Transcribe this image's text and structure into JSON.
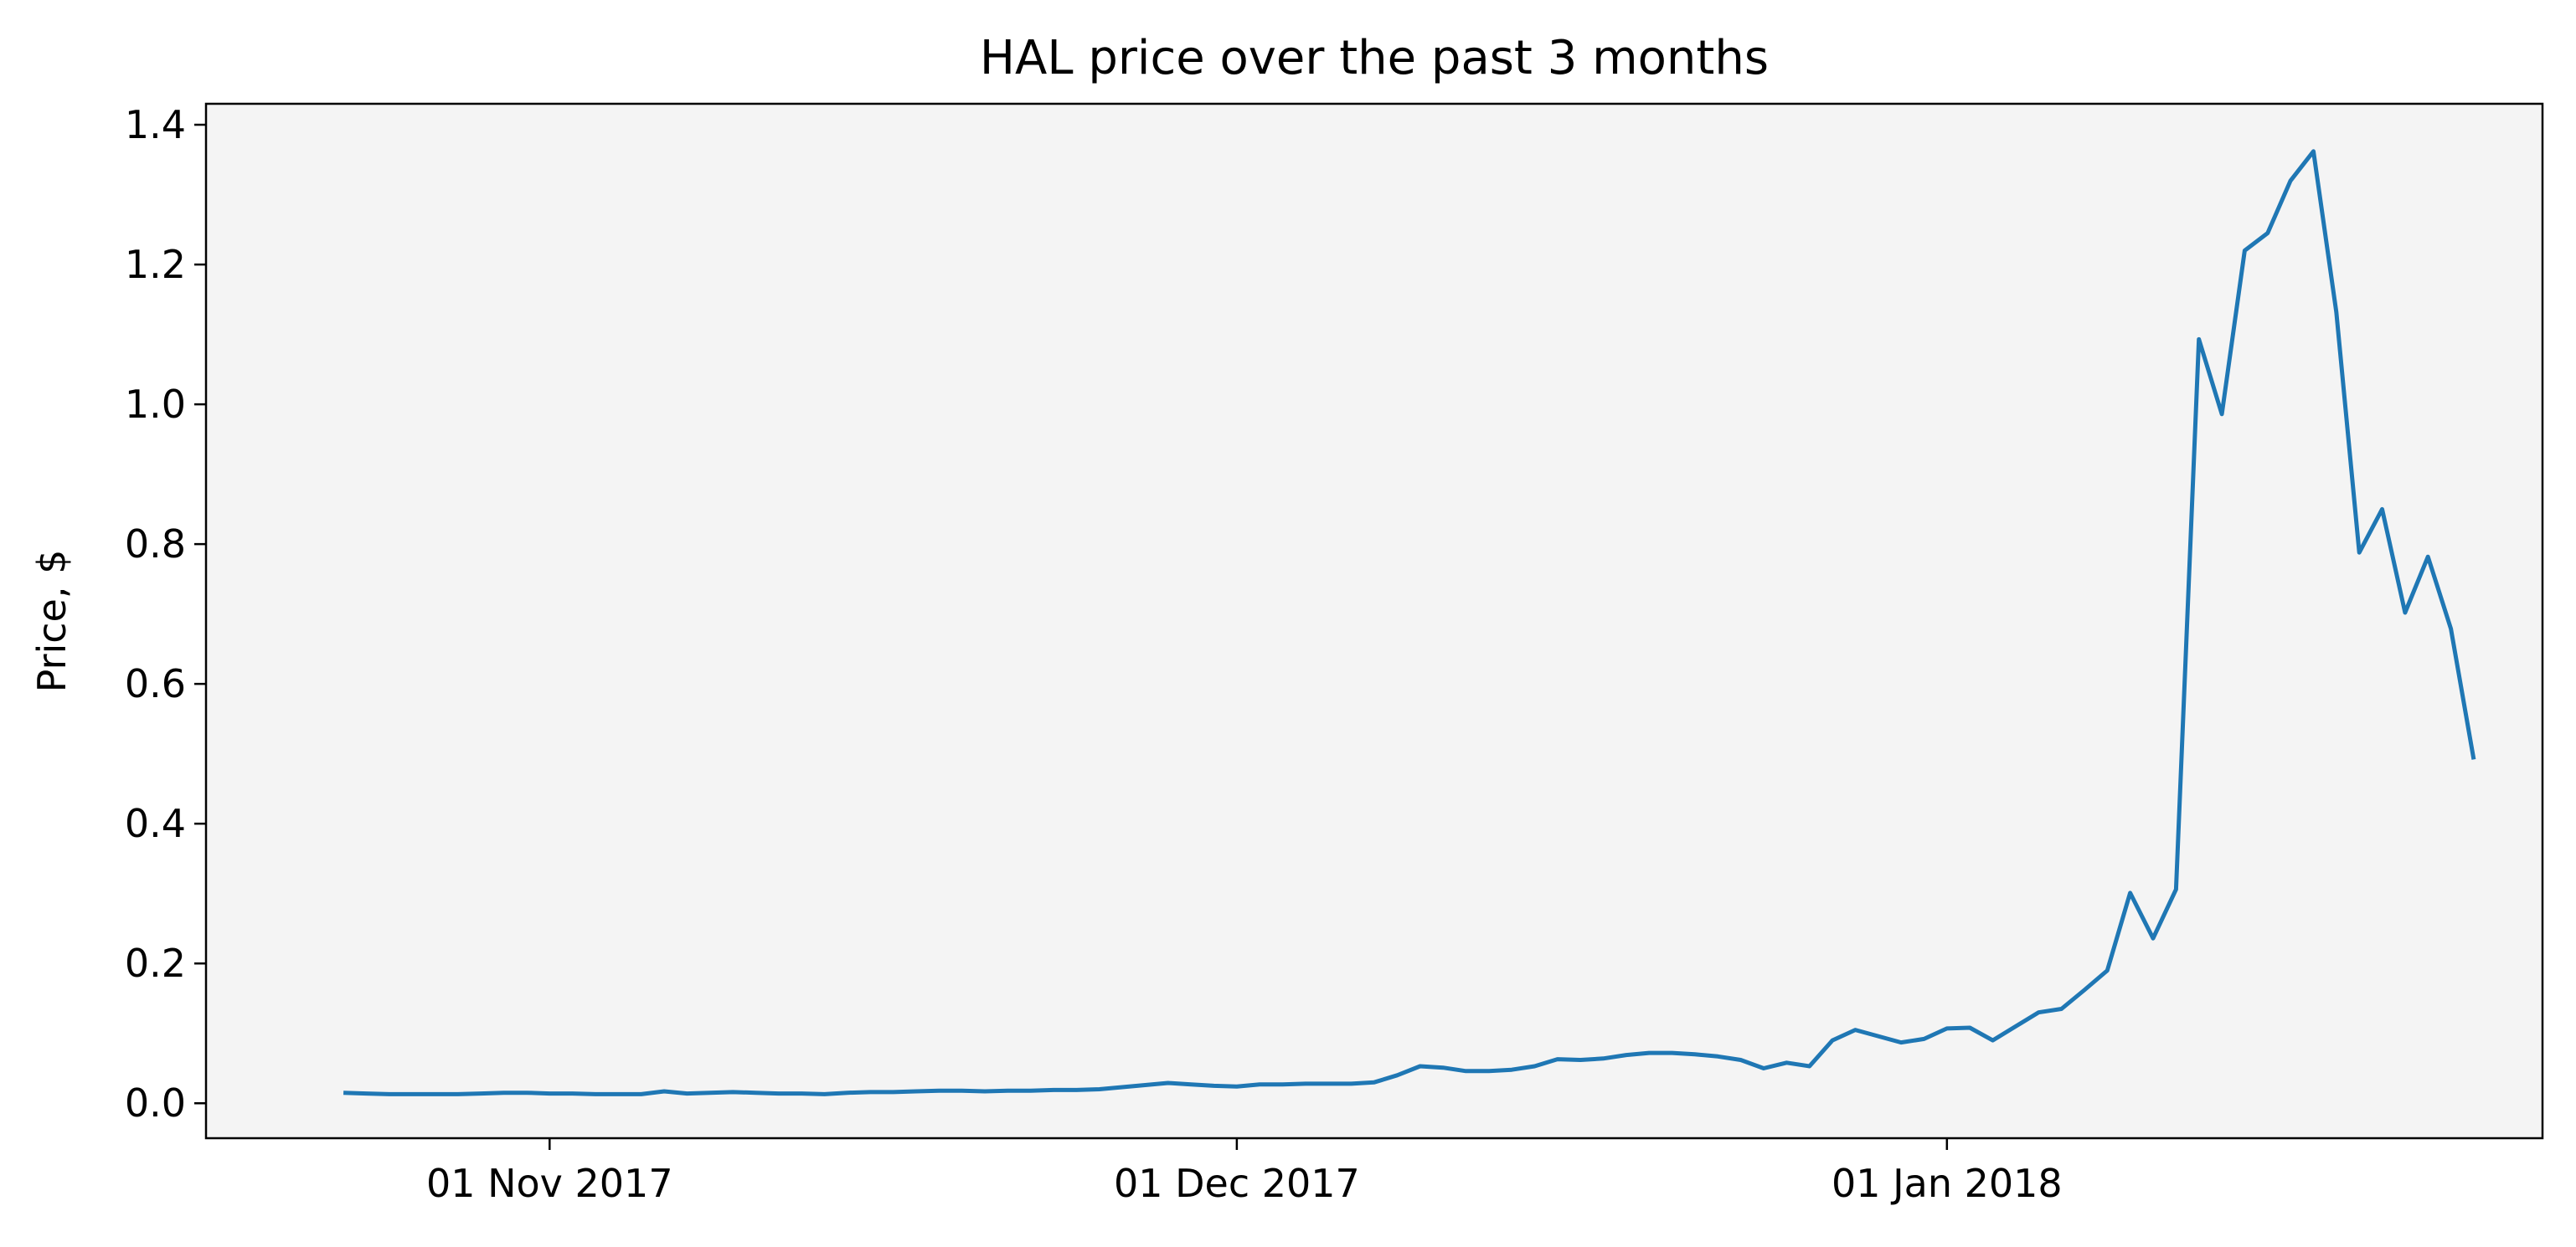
{
  "chart_data": {
    "type": "line",
    "title": "HAL price over the past 3 months",
    "xlabel": "",
    "ylabel": "Price, $",
    "xlim": [
      "2017-10-17",
      "2018-01-27"
    ],
    "ylim": [
      -0.05,
      1.43
    ],
    "x_ticks": [
      {
        "date": "2017-11-01",
        "label": "01 Nov 2017"
      },
      {
        "date": "2017-12-01",
        "label": "01 Dec 2017"
      },
      {
        "date": "2018-01-01",
        "label": "01 Jan 2018"
      }
    ],
    "y_ticks": [
      {
        "value": 0.0,
        "label": "0.0"
      },
      {
        "value": 0.2,
        "label": "0.2"
      },
      {
        "value": 0.4,
        "label": "0.4"
      },
      {
        "value": 0.6,
        "label": "0.6"
      },
      {
        "value": 0.8,
        "label": "0.8"
      },
      {
        "value": 1.0,
        "label": "1.0"
      },
      {
        "value": 1.2,
        "label": "1.2"
      },
      {
        "value": 1.4,
        "label": "1.4"
      }
    ],
    "grid": false,
    "background": "#f4f4f4",
    "line_color": "#1f77b4",
    "series": [
      {
        "points": [
          [
            "2017-10-23",
            0.015
          ],
          [
            "2017-10-24",
            0.014
          ],
          [
            "2017-10-25",
            0.013
          ],
          [
            "2017-10-26",
            0.013
          ],
          [
            "2017-10-27",
            0.013
          ],
          [
            "2017-10-28",
            0.013
          ],
          [
            "2017-10-29",
            0.014
          ],
          [
            "2017-10-30",
            0.015
          ],
          [
            "2017-10-31",
            0.015
          ],
          [
            "2017-11-01",
            0.014
          ],
          [
            "2017-11-02",
            0.014
          ],
          [
            "2017-11-03",
            0.013
          ],
          [
            "2017-11-04",
            0.013
          ],
          [
            "2017-11-05",
            0.013
          ],
          [
            "2017-11-06",
            0.017
          ],
          [
            "2017-11-07",
            0.014
          ],
          [
            "2017-11-08",
            0.015
          ],
          [
            "2017-11-09",
            0.016
          ],
          [
            "2017-11-10",
            0.015
          ],
          [
            "2017-11-11",
            0.014
          ],
          [
            "2017-11-12",
            0.014
          ],
          [
            "2017-11-13",
            0.013
          ],
          [
            "2017-11-14",
            0.015
          ],
          [
            "2017-11-15",
            0.016
          ],
          [
            "2017-11-16",
            0.016
          ],
          [
            "2017-11-17",
            0.017
          ],
          [
            "2017-11-18",
            0.018
          ],
          [
            "2017-11-19",
            0.018
          ],
          [
            "2017-11-20",
            0.017
          ],
          [
            "2017-11-21",
            0.018
          ],
          [
            "2017-11-22",
            0.018
          ],
          [
            "2017-11-23",
            0.019
          ],
          [
            "2017-11-24",
            0.019
          ],
          [
            "2017-11-25",
            0.02
          ],
          [
            "2017-11-26",
            0.023
          ],
          [
            "2017-11-27",
            0.026
          ],
          [
            "2017-11-28",
            0.029
          ],
          [
            "2017-11-29",
            0.027
          ],
          [
            "2017-11-30",
            0.025
          ],
          [
            "2017-12-01",
            0.024
          ],
          [
            "2017-12-02",
            0.027
          ],
          [
            "2017-12-03",
            0.027
          ],
          [
            "2017-12-04",
            0.028
          ],
          [
            "2017-12-05",
            0.028
          ],
          [
            "2017-12-06",
            0.028
          ],
          [
            "2017-12-07",
            0.03
          ],
          [
            "2017-12-08",
            0.04
          ],
          [
            "2017-12-09",
            0.053
          ],
          [
            "2017-12-10",
            0.051
          ],
          [
            "2017-12-11",
            0.046
          ],
          [
            "2017-12-12",
            0.046
          ],
          [
            "2017-12-13",
            0.048
          ],
          [
            "2017-12-14",
            0.053
          ],
          [
            "2017-12-15",
            0.063
          ],
          [
            "2017-12-16",
            0.062
          ],
          [
            "2017-12-17",
            0.064
          ],
          [
            "2017-12-18",
            0.069
          ],
          [
            "2017-12-19",
            0.072
          ],
          [
            "2017-12-20",
            0.072
          ],
          [
            "2017-12-21",
            0.07
          ],
          [
            "2017-12-22",
            0.067
          ],
          [
            "2017-12-23",
            0.062
          ],
          [
            "2017-12-24",
            0.05
          ],
          [
            "2017-12-25",
            0.058
          ],
          [
            "2017-12-26",
            0.053
          ],
          [
            "2017-12-27",
            0.09
          ],
          [
            "2017-12-28",
            0.105
          ],
          [
            "2017-12-29",
            0.096
          ],
          [
            "2017-12-30",
            0.087
          ],
          [
            "2017-12-31",
            0.092
          ],
          [
            "2018-01-01",
            0.107
          ],
          [
            "2018-01-02",
            0.108
          ],
          [
            "2018-01-03",
            0.09
          ],
          [
            "2018-01-04",
            0.11
          ],
          [
            "2018-01-05",
            0.13
          ],
          [
            "2018-01-06",
            0.135
          ],
          [
            "2018-01-07",
            0.162
          ],
          [
            "2018-01-08",
            0.19
          ],
          [
            "2018-01-09",
            0.301
          ],
          [
            "2018-01-10",
            0.236
          ],
          [
            "2018-01-11",
            0.306
          ],
          [
            "2018-01-12",
            1.093
          ],
          [
            "2018-01-13",
            0.986
          ],
          [
            "2018-01-14",
            1.22
          ],
          [
            "2018-01-15",
            1.245
          ],
          [
            "2018-01-16",
            1.32
          ],
          [
            "2018-01-17",
            1.362
          ],
          [
            "2018-01-18",
            1.132
          ],
          [
            "2018-01-19",
            0.788
          ],
          [
            "2018-01-20",
            0.85
          ],
          [
            "2018-01-21",
            0.702
          ],
          [
            "2018-01-22",
            0.782
          ],
          [
            "2018-01-23",
            0.679
          ],
          [
            "2018-01-24",
            0.492
          ]
        ]
      }
    ]
  }
}
